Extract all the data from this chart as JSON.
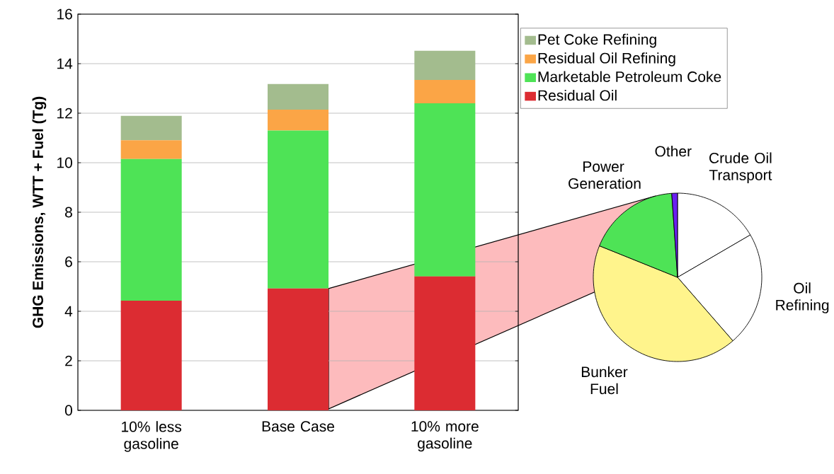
{
  "chart_data": [
    {
      "type": "bar",
      "stacked": true,
      "ylabel": "GHG Emissions, WTT + Fuel (Tg)",
      "categories": [
        "10% less gasoline",
        "Base Case",
        "10% more gasoline"
      ],
      "series": [
        {
          "name": "Residual Oil",
          "color": "#dc2c32",
          "values": [
            4.43,
            4.92,
            5.41
          ]
        },
        {
          "name": "Marketable Petroleum Coke",
          "color": "#4ee356",
          "values": [
            5.72,
            6.38,
            6.99
          ]
        },
        {
          "name": "Residual Oil Refining",
          "color": "#fba546",
          "values": [
            0.76,
            0.84,
            0.94
          ]
        },
        {
          "name": "Pet Coke Refining",
          "color": "#a3bc8e",
          "values": [
            0.98,
            1.04,
            1.18
          ]
        }
      ],
      "ylim": [
        0,
        16
      ],
      "yticks": [
        0,
        2,
        4,
        6,
        8,
        10,
        12,
        14,
        16
      ],
      "grid": "y",
      "legend": "top right"
    },
    {
      "type": "pie",
      "categories": [
        "Crude Oil Transport",
        "Oil Refining",
        "Bunker Fuel",
        "Power Generation",
        "Other"
      ],
      "values": [
        16.6,
        22.0,
        42.5,
        17.8,
        1.1
      ],
      "colors": [
        "#ffffff",
        "#ffffff",
        "#fff48c",
        "#4ee356",
        "#6a20f0"
      ]
    }
  ]
}
